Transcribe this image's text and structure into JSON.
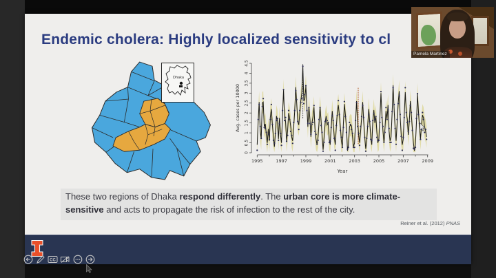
{
  "meeting": {
    "participant_name": "Pamela Martinez"
  },
  "slide": {
    "title": "Endemic cholera: Highly localized sensitivity to cl",
    "body": {
      "part1": "These two regions of Dhaka ",
      "bold1": "respond differently",
      "part2": ". The ",
      "bold2": "urban core is more climate-sensitive",
      "part3": " and acts to propagate the risk of infection to the rest of the city."
    },
    "citation_text": "Reiner et al. (2012) ",
    "citation_journal": "PNAS",
    "map": {
      "inset_label": "Dhaka",
      "region_blue": "#4aa7dd",
      "region_orange": "#e6a83f"
    },
    "logo_name": "illinois-block-i",
    "accent_navy": "#293552",
    "title_color": "#2b3c80",
    "illinois_orange": "#e8502a"
  },
  "toolbar": {
    "back_label": "back",
    "annotate_label": "annotate",
    "cc_label": "CC",
    "camera_off_label": "camera-off",
    "more_label": "more",
    "forward_label": "forward"
  },
  "chart_data": {
    "type": "line",
    "title": "",
    "xlabel": "Year",
    "ylabel": "Avg. cases per 10000",
    "xlim": [
      1994.7,
      2009.3
    ],
    "ylim": [
      0,
      4.5
    ],
    "x_major_ticks": [
      1995,
      1997,
      1999,
      2001,
      2003,
      2005,
      2007,
      2009
    ],
    "y_ticks": [
      0,
      0.5,
      1,
      1.5,
      2,
      2.5,
      3,
      3.5,
      4,
      4.5
    ],
    "grid": false,
    "legend": "none",
    "start_year": 1995,
    "points_per_year": 12,
    "series": [
      {
        "name": "avg cholera cases per 10000 (monthly)",
        "color": "#1a1a1a",
        "values": [
          0.4,
          1.6,
          2.55,
          1.1,
          0.7,
          2.5,
          2.55,
          1.3,
          1.45,
          0.9,
          0.5,
          1.2,
          0.6,
          1.8,
          2.2,
          1.4,
          0.8,
          0.3,
          1.0,
          1.85,
          1.6,
          0.7,
          1.75,
          0.9,
          0.5,
          1.9,
          3.15,
          1.8,
          1.6,
          0.6,
          1.1,
          2.0,
          1.75,
          1.35,
          0.8,
          0.6,
          1.3,
          2.1,
          3.3,
          2.5,
          1.6,
          1.4,
          2.0,
          2.6,
          3.0,
          4.4,
          2.6,
          2.7,
          3.35,
          2.3,
          1.3,
          2.3,
          1.7,
          0.8,
          1.5,
          1.8,
          2.3,
          1.2,
          0.7,
          0.4,
          0.8,
          1.5,
          2.3,
          1.6,
          0.9,
          0.15,
          0.8,
          1.5,
          1.85,
          1.4,
          1.5,
          0.7,
          0.4,
          1.3,
          2.1,
          1.5,
          0.8,
          0.4,
          1.3,
          2.0,
          2.4,
          1.9,
          1.3,
          0.6,
          0.3,
          1.5,
          2.45,
          1.9,
          1.3,
          0.1,
          0.4,
          1.3,
          1.4,
          1.35,
          0.8,
          0.3,
          0.5,
          1.5,
          2.6,
          1.6,
          0.9,
          0.5,
          1.1,
          1.8,
          2.55,
          1.6,
          0.8,
          0.2,
          0.6,
          1.4,
          2.2,
          1.5,
          0.8,
          0.4,
          1.6,
          2.15,
          1.5,
          1.85,
          1.0,
          0.5,
          0.7,
          1.8,
          3.0,
          1.9,
          1.1,
          0.5,
          1.2,
          2.1,
          1.7,
          2.4,
          1.1,
          0.6,
          0.8,
          2.0,
          3.4,
          2.2,
          1.2,
          0.6,
          1.5,
          2.5,
          3.1,
          1.8,
          0.9,
          0.4,
          0.7,
          1.9,
          3.05,
          2.0,
          1.7,
          0.9,
          1.6,
          2.6,
          1.9,
          1.2,
          0.5,
          0.1,
          0.4,
          1.5,
          2.95,
          2.1,
          1.3,
          0.7,
          1.4,
          1.9,
          1.75,
          1.3,
          1.1,
          0.8
        ]
      }
    ],
    "band": {
      "halfwidth": 0.55,
      "color": "#ddd79a",
      "opacity": 0.85
    },
    "dots": {
      "color": "#2c2c54",
      "radius": 1.1
    },
    "vlines": [
      {
        "x": 1998.75,
        "y0": 1.75,
        "y1": 4.5,
        "color": "#5a5a5a",
        "style": "dotted"
      },
      {
        "x": 2003.3,
        "y0": 0.45,
        "y1": 3.3,
        "color": "#b2622f",
        "style": "dotted"
      }
    ]
  }
}
